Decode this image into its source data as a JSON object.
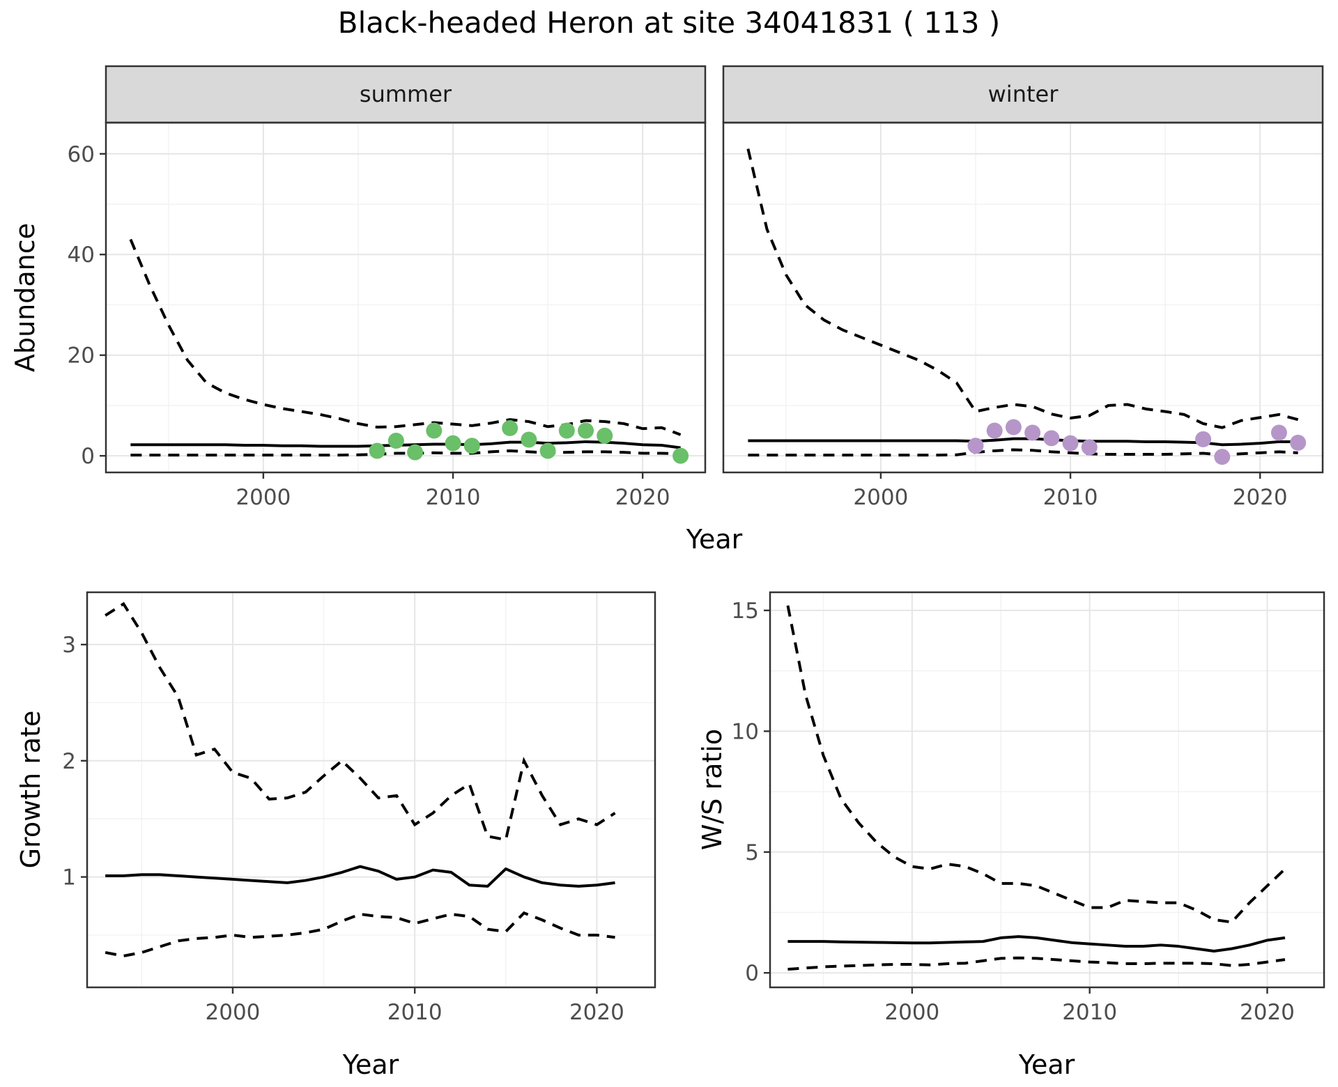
{
  "title": "Black-headed Heron at site 34041831 ( 113 )",
  "colors": {
    "summer_points": "#6abf69",
    "winter_points": "#b696c9",
    "line": "#000000",
    "grid_major": "#e6e6e6",
    "grid_minor": "#f2f2f2",
    "panel_border": "#333333",
    "strip_bg": "#d9d9d9",
    "tick_text": "#4d4d4d"
  },
  "chart_data": [
    {
      "type": "line",
      "name": "abundance-summer",
      "facet": "summer",
      "xlabel": "Year",
      "ylabel": "Abundance",
      "x_range": [
        1991.7,
        2023.3
      ],
      "y_range": [
        -3.3,
        66.2
      ],
      "x_ticks": [
        2000,
        2010,
        2020
      ],
      "x_minor": [
        1995,
        2005,
        2015
      ],
      "y_ticks": [
        0,
        20,
        40,
        60
      ],
      "y_minor": [
        10,
        30,
        50
      ],
      "grid": true,
      "legend": "none",
      "years": [
        1993,
        1994,
        1995,
        1996,
        1997,
        1998,
        1999,
        2000,
        2001,
        2002,
        2003,
        2004,
        2005,
        2006,
        2007,
        2008,
        2009,
        2010,
        2011,
        2012,
        2013,
        2014,
        2015,
        2016,
        2017,
        2018,
        2019,
        2020,
        2021,
        2022
      ],
      "upper_ci": [
        43,
        34,
        26,
        19,
        14.5,
        12.5,
        11.2,
        10.2,
        9.4,
        8.8,
        8.2,
        7.4,
        6.4,
        5.7,
        5.8,
        6.2,
        6.6,
        6.3,
        6.0,
        6.5,
        7.2,
        6.8,
        5.8,
        6.2,
        7.0,
        6.8,
        6.4,
        5.4,
        5.6,
        4.2
      ],
      "median": [
        2.2,
        2.2,
        2.2,
        2.2,
        2.2,
        2.2,
        2.1,
        2.1,
        2.0,
        2.0,
        1.9,
        1.9,
        1.9,
        2.0,
        2.1,
        2.2,
        2.3,
        2.3,
        2.2,
        2.4,
        2.7,
        2.7,
        2.5,
        2.6,
        2.8,
        2.7,
        2.5,
        2.2,
        2.1,
        1.6
      ],
      "lower_ci": [
        0.15,
        0.15,
        0.15,
        0.15,
        0.15,
        0.15,
        0.15,
        0.15,
        0.15,
        0.15,
        0.15,
        0.15,
        0.2,
        0.3,
        0.5,
        0.5,
        0.6,
        0.5,
        0.5,
        0.8,
        1.0,
        0.8,
        0.6,
        0.7,
        0.8,
        0.8,
        0.7,
        0.5,
        0.5,
        0.4
      ],
      "observations": {
        "years": [
          2006,
          2007,
          2008,
          2009,
          2010,
          2011,
          2013,
          2014,
          2015,
          2016,
          2017,
          2018,
          2022
        ],
        "values": [
          1,
          3,
          0.7,
          5,
          2.5,
          2,
          5.5,
          3.2,
          1,
          5,
          5,
          4,
          0
        ]
      }
    },
    {
      "type": "line",
      "name": "abundance-winter",
      "facet": "winter",
      "xlabel": "Year",
      "ylabel": "Abundance",
      "x_range": [
        1991.7,
        2023.3
      ],
      "y_range": [
        -3.3,
        66.2
      ],
      "x_ticks": [
        2000,
        2010,
        2020
      ],
      "x_minor": [
        1995,
        2005,
        2015
      ],
      "y_ticks": [
        0,
        20,
        40,
        60
      ],
      "y_minor": [
        10,
        30,
        50
      ],
      "grid": true,
      "legend": "none",
      "years": [
        1993,
        1994,
        1995,
        1996,
        1997,
        1998,
        1999,
        2000,
        2001,
        2002,
        2003,
        2004,
        2005,
        2006,
        2007,
        2008,
        2009,
        2010,
        2011,
        2012,
        2013,
        2014,
        2015,
        2016,
        2017,
        2018,
        2019,
        2020,
        2021,
        2022
      ],
      "upper_ci": [
        61,
        45,
        36,
        30,
        27,
        25,
        23.5,
        22,
        20.5,
        19,
        17,
        14.5,
        8.8,
        9.6,
        10.2,
        9.8,
        8.3,
        7.5,
        8.0,
        10.0,
        10.2,
        9.3,
        8.8,
        8.2,
        6.4,
        5.6,
        7.0,
        7.6,
        8.2,
        7.2
      ],
      "median": [
        3.0,
        3.0,
        3.0,
        3.0,
        3.0,
        3.0,
        3.0,
        3.0,
        3.0,
        3.0,
        3.0,
        3.0,
        2.9,
        3.1,
        3.4,
        3.4,
        3.2,
        3.0,
        2.9,
        2.9,
        2.9,
        2.8,
        2.8,
        2.7,
        2.6,
        2.2,
        2.3,
        2.5,
        2.8,
        2.8
      ],
      "lower_ci": [
        0.15,
        0.15,
        0.15,
        0.15,
        0.15,
        0.15,
        0.15,
        0.15,
        0.15,
        0.15,
        0.15,
        0.2,
        0.7,
        1.0,
        1.2,
        1.1,
        0.8,
        0.6,
        0.4,
        0.3,
        0.3,
        0.3,
        0.3,
        0.4,
        0.5,
        0.2,
        0.4,
        0.6,
        0.8,
        0.6
      ],
      "observations": {
        "years": [
          2005,
          2006,
          2007,
          2008,
          2009,
          2010,
          2011,
          2017,
          2018,
          2021,
          2022
        ],
        "values": [
          2,
          5,
          5.7,
          4.6,
          3.5,
          2.5,
          1.7,
          3.3,
          -0.2,
          4.6,
          2.6
        ]
      }
    },
    {
      "type": "line",
      "name": "growth-rate",
      "facet": "",
      "xlabel": "Year",
      "ylabel": "Growth rate",
      "x_range": [
        1992.0,
        2023.2
      ],
      "y_range": [
        0.05,
        3.45
      ],
      "x_ticks": [
        2000,
        2010,
        2020
      ],
      "x_minor": [
        1995,
        2005,
        2015
      ],
      "y_ticks": [
        1,
        2,
        3
      ],
      "y_minor": [
        0.5,
        1.5,
        2.5
      ],
      "grid": true,
      "legend": "none",
      "years": [
        1993,
        1994,
        1995,
        1996,
        1997,
        1998,
        1999,
        2000,
        2001,
        2002,
        2003,
        2004,
        2005,
        2006,
        2007,
        2008,
        2009,
        2010,
        2011,
        2012,
        2013,
        2014,
        2015,
        2016,
        2017,
        2018,
        2019,
        2020,
        2021
      ],
      "upper_ci": [
        3.25,
        3.35,
        3.1,
        2.8,
        2.55,
        2.05,
        2.1,
        1.9,
        1.85,
        1.67,
        1.68,
        1.73,
        1.87,
        2.0,
        1.85,
        1.68,
        1.7,
        1.45,
        1.55,
        1.7,
        1.8,
        1.35,
        1.32,
        2.0,
        1.7,
        1.45,
        1.5,
        1.45,
        1.55
      ],
      "median": [
        1.01,
        1.01,
        1.02,
        1.02,
        1.01,
        1.0,
        0.99,
        0.98,
        0.97,
        0.96,
        0.95,
        0.97,
        1.0,
        1.04,
        1.09,
        1.05,
        0.98,
        1.0,
        1.06,
        1.04,
        0.93,
        0.92,
        1.07,
        1.0,
        0.95,
        0.93,
        0.92,
        0.93,
        0.95
      ],
      "lower_ci": [
        0.35,
        0.32,
        0.35,
        0.4,
        0.45,
        0.47,
        0.48,
        0.5,
        0.48,
        0.49,
        0.5,
        0.52,
        0.55,
        0.62,
        0.68,
        0.66,
        0.65,
        0.6,
        0.64,
        0.68,
        0.66,
        0.55,
        0.53,
        0.69,
        0.63,
        0.56,
        0.5,
        0.5,
        0.48
      ],
      "observations": {
        "years": [],
        "values": []
      }
    },
    {
      "type": "line",
      "name": "winter-summer-ratio",
      "facet": "",
      "xlabel": "Year",
      "ylabel": "W/S ratio",
      "x_range": [
        1992.0,
        2023.2
      ],
      "y_range": [
        -0.6,
        15.75
      ],
      "x_ticks": [
        2000,
        2010,
        2020
      ],
      "x_minor": [
        1995,
        2005,
        2015
      ],
      "y_ticks": [
        0,
        5,
        10,
        15
      ],
      "y_minor": [
        2.5,
        7.5,
        12.5
      ],
      "grid": true,
      "legend": "none",
      "years": [
        1993,
        1994,
        1995,
        1996,
        1997,
        1998,
        1999,
        2000,
        2001,
        2002,
        2003,
        2004,
        2005,
        2006,
        2007,
        2008,
        2009,
        2010,
        2011,
        2012,
        2013,
        2014,
        2015,
        2016,
        2017,
        2018,
        2019,
        2020,
        2021
      ],
      "upper_ci": [
        15.2,
        11.5,
        9.0,
        7.2,
        6.2,
        5.4,
        4.8,
        4.4,
        4.3,
        4.5,
        4.4,
        4.1,
        3.7,
        3.7,
        3.6,
        3.3,
        3.0,
        2.7,
        2.7,
        3.0,
        2.95,
        2.9,
        2.9,
        2.6,
        2.2,
        2.1,
        2.9,
        3.6,
        4.3
      ],
      "median": [
        1.3,
        1.3,
        1.3,
        1.28,
        1.27,
        1.26,
        1.25,
        1.24,
        1.24,
        1.26,
        1.28,
        1.3,
        1.45,
        1.5,
        1.45,
        1.35,
        1.25,
        1.2,
        1.15,
        1.1,
        1.1,
        1.15,
        1.1,
        1.0,
        0.9,
        1.0,
        1.15,
        1.35,
        1.45
      ],
      "lower_ci": [
        0.15,
        0.2,
        0.25,
        0.28,
        0.3,
        0.33,
        0.35,
        0.35,
        0.33,
        0.38,
        0.4,
        0.5,
        0.6,
        0.62,
        0.6,
        0.55,
        0.5,
        0.45,
        0.42,
        0.38,
        0.38,
        0.4,
        0.4,
        0.4,
        0.38,
        0.3,
        0.35,
        0.45,
        0.55
      ],
      "observations": {
        "years": [],
        "values": []
      }
    }
  ]
}
